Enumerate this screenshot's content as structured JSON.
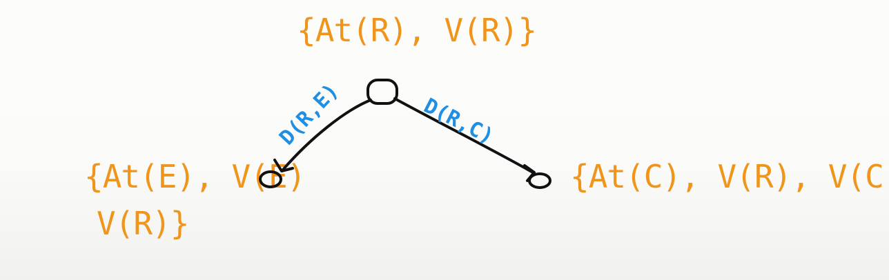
{
  "colors": {
    "state_set": "#f0951c",
    "action": "#1f8fe3",
    "ink": "#111111"
  },
  "nodes": {
    "root": {
      "label": "{At(R), V(R)}"
    },
    "left": {
      "label_line1": "{At(E), V(E)",
      "label_line2": "V(R)}"
    },
    "right": {
      "label": "{At(C), V(R), V(C)}"
    }
  },
  "edges": {
    "left": {
      "label": "D(R,E)"
    },
    "right": {
      "label": "D(R,C)"
    }
  }
}
